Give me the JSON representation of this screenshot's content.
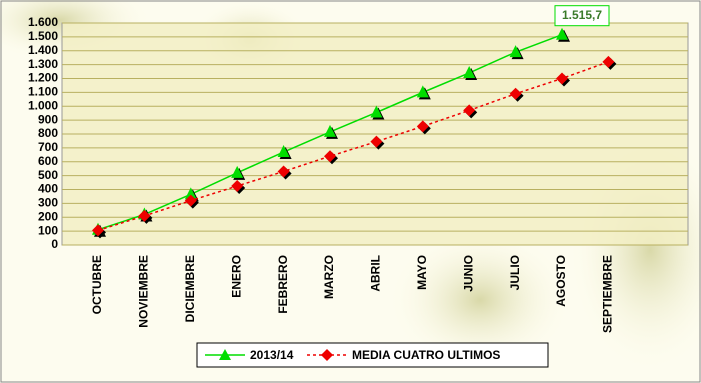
{
  "chart_data": {
    "type": "line",
    "categories": [
      "OCTUBRE",
      "NOVIEMBRE",
      "DICIEMBRE",
      "ENERO",
      "FEBRERO",
      "MARZO",
      "ABRIL",
      "MAYO",
      "JUNIO",
      "JULIO",
      "AGOSTO",
      "SEPTIEMBRE"
    ],
    "series": [
      {
        "name": "2013/14",
        "color": "#00dd00",
        "marker": "triangle",
        "values": [
          110,
          220,
          365,
          520,
          670,
          815,
          955,
          1100,
          1240,
          1390,
          1515.7,
          null
        ],
        "value_labels": [
          null,
          null,
          null,
          null,
          null,
          null,
          null,
          null,
          null,
          null,
          "1.515,7",
          null
        ]
      },
      {
        "name": "MEDIA CUATRO ULTIMOS",
        "color": "#ee0000",
        "marker": "diamond",
        "dash": true,
        "values": [
          105,
          210,
          320,
          425,
          530,
          640,
          745,
          855,
          970,
          1090,
          1200,
          1320
        ]
      }
    ],
    "ylim": [
      0,
      1600
    ],
    "yticks": [
      0,
      100,
      200,
      300,
      400,
      500,
      600,
      700,
      800,
      900,
      {
        "value": 1000,
        "label": "1.000"
      },
      {
        "value": 1100,
        "label": "1.100"
      },
      {
        "value": 1200,
        "label": "1.200"
      },
      {
        "value": 1300,
        "label": "1.300"
      },
      {
        "value": 1400,
        "label": "1.400"
      },
      {
        "value": 1500,
        "label": "1.500"
      },
      {
        "value": 1600,
        "label": "1.600"
      }
    ],
    "grid": true
  }
}
